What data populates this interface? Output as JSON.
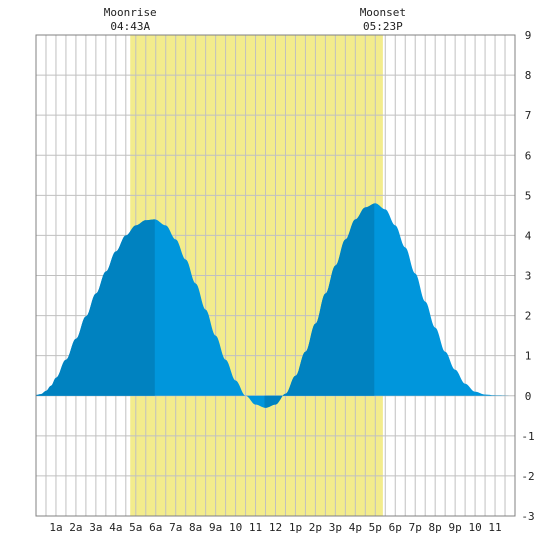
{
  "chart_data": {
    "type": "area",
    "title": "",
    "xlabel": "",
    "ylabel": "",
    "x_tick_labels": [
      "1a",
      "2a",
      "3a",
      "4a",
      "5a",
      "6a",
      "7a",
      "8a",
      "9a",
      "10",
      "11",
      "12",
      "1p",
      "2p",
      "3p",
      "4p",
      "5p",
      "6p",
      "7p",
      "8p",
      "9p",
      "10",
      "11"
    ],
    "xlim": [
      0,
      24
    ],
    "ylim": [
      -3,
      9
    ],
    "y_ticks": [
      -3,
      -2,
      -1,
      0,
      1,
      2,
      3,
      4,
      5,
      6,
      7,
      8,
      9
    ],
    "grid": true,
    "moon_window": [
      4.72,
      17.38
    ],
    "series": [
      {
        "values": [
          {
            "x": 0.0,
            "y": 0.02
          },
          {
            "x": 0.25,
            "y": 0.04
          },
          {
            "x": 0.5,
            "y": 0.12
          },
          {
            "x": 0.75,
            "y": 0.25
          },
          {
            "x": 1.0,
            "y": 0.45
          },
          {
            "x": 1.5,
            "y": 0.9
          },
          {
            "x": 2.0,
            "y": 1.42
          },
          {
            "x": 2.5,
            "y": 1.98
          },
          {
            "x": 3.0,
            "y": 2.55
          },
          {
            "x": 3.5,
            "y": 3.1
          },
          {
            "x": 4.0,
            "y": 3.6
          },
          {
            "x": 4.5,
            "y": 4.0
          },
          {
            "x": 5.0,
            "y": 4.25
          },
          {
            "x": 5.5,
            "y": 4.38
          },
          {
            "x": 5.95,
            "y": 4.4
          },
          {
            "x": 6.5,
            "y": 4.25
          },
          {
            "x": 7.0,
            "y": 3.9
          },
          {
            "x": 7.5,
            "y": 3.4
          },
          {
            "x": 8.0,
            "y": 2.8
          },
          {
            "x": 8.5,
            "y": 2.15
          },
          {
            "x": 9.0,
            "y": 1.5
          },
          {
            "x": 9.5,
            "y": 0.9
          },
          {
            "x": 10.0,
            "y": 0.38
          },
          {
            "x": 10.5,
            "y": 0.0
          },
          {
            "x": 11.0,
            "y": -0.22
          },
          {
            "x": 11.5,
            "y": -0.3
          },
          {
            "x": 12.0,
            "y": -0.22
          },
          {
            "x": 12.5,
            "y": 0.05
          },
          {
            "x": 13.0,
            "y": 0.5
          },
          {
            "x": 13.5,
            "y": 1.1
          },
          {
            "x": 14.0,
            "y": 1.8
          },
          {
            "x": 14.5,
            "y": 2.55
          },
          {
            "x": 15.0,
            "y": 3.25
          },
          {
            "x": 15.5,
            "y": 3.9
          },
          {
            "x": 16.0,
            "y": 4.4
          },
          {
            "x": 16.5,
            "y": 4.7
          },
          {
            "x": 17.0,
            "y": 4.8
          },
          {
            "x": 17.5,
            "y": 4.65
          },
          {
            "x": 18.0,
            "y": 4.25
          },
          {
            "x": 18.5,
            "y": 3.7
          },
          {
            "x": 19.0,
            "y": 3.05
          },
          {
            "x": 19.5,
            "y": 2.35
          },
          {
            "x": 20.0,
            "y": 1.7
          },
          {
            "x": 20.5,
            "y": 1.1
          },
          {
            "x": 21.0,
            "y": 0.65
          },
          {
            "x": 21.5,
            "y": 0.3
          },
          {
            "x": 22.0,
            "y": 0.1
          },
          {
            "x": 22.5,
            "y": 0.03
          },
          {
            "x": 23.0,
            "y": 0.01
          },
          {
            "x": 24.0,
            "y": 0.0
          }
        ]
      }
    ],
    "rising_intervals": [
      [
        0,
        5.95
      ],
      [
        11.45,
        16.95
      ]
    ],
    "annotations": [
      {
        "name": "moonrise",
        "label": "Moonrise",
        "time": "04:43A",
        "x": 4.72
      },
      {
        "name": "moonset",
        "label": "Moonset",
        "time": "05:23P",
        "x": 17.38
      }
    ],
    "colors": {
      "rising": "#0082c0",
      "falling": "#0096dc",
      "moon_band": "#f3ec8c",
      "grid": "#c0c0c0",
      "frame": "#808080"
    }
  }
}
